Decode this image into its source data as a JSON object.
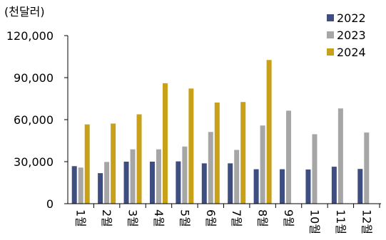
{
  "chart_data": {
    "type": "bar",
    "unit_label": "(천달러)",
    "title": "",
    "xlabel": "",
    "ylabel": "",
    "categories": [
      "1월",
      "2월",
      "3월",
      "4월",
      "5월",
      "6월",
      "7월",
      "8월",
      "9월",
      "10월",
      "11월",
      "12월"
    ],
    "series": [
      {
        "name": "2022",
        "color": "#3e4e80",
        "values": [
          26800,
          21800,
          30000,
          30000,
          30200,
          28800,
          28800,
          24600,
          24600,
          24400,
          26400,
          24800
        ]
      },
      {
        "name": "2023",
        "color": "#a6a6a6",
        "values": [
          25800,
          29800,
          38800,
          38800,
          40800,
          51200,
          38400,
          55800,
          66400,
          49600,
          68000,
          50800
        ]
      },
      {
        "name": "2024",
        "color": "#c9a01a",
        "values": [
          56600,
          57200,
          63800,
          86000,
          82200,
          72200,
          72600,
          102600,
          null,
          null,
          null,
          null
        ]
      }
    ],
    "ylim": [
      0,
      120000
    ],
    "yticks": [
      0,
      30000,
      60000,
      90000,
      120000
    ],
    "ytick_labels": [
      "0",
      "30,000",
      "60,000",
      "90,000",
      "120,000"
    ],
    "grid": false,
    "legend_position": "top-right"
  }
}
